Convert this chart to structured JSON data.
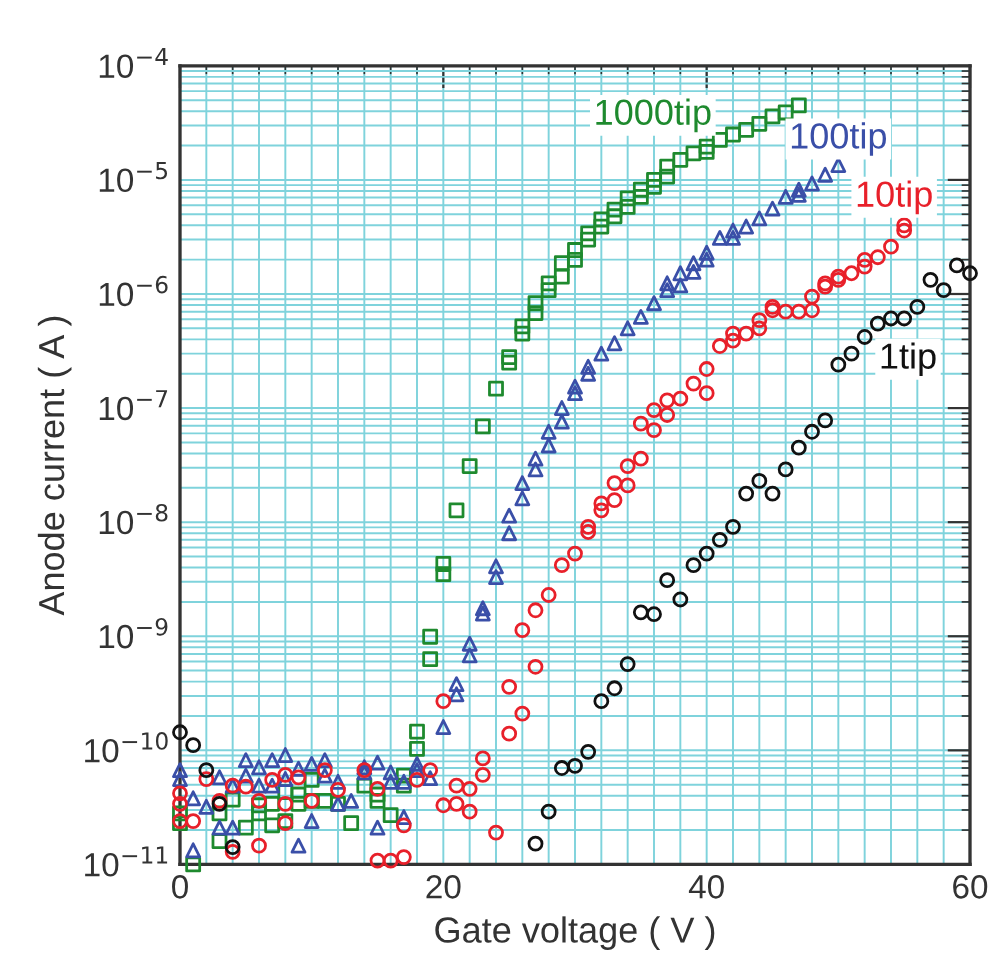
{
  "chart_data": {
    "type": "scatter",
    "xlabel": "Gate voltage ( V )",
    "ylabel": "Anode current ( A )",
    "log": "y",
    "grid": true,
    "xlim": [
      0,
      60
    ],
    "xticks": [
      0,
      20,
      40,
      60
    ],
    "ylim": [
      1e-11,
      0.0001
    ],
    "yticks": [
      {
        "value": 1e-11,
        "label": "10$^{−11}$"
      },
      {
        "value": 1e-10,
        "label": "10$^{−10}$"
      },
      {
        "value": 1e-09,
        "label": "10$^{−9}$"
      },
      {
        "value": 1e-08,
        "label": "10$^{−8}$"
      },
      {
        "value": 1e-07,
        "label": "10$^{−7}$"
      },
      {
        "value": 1e-06,
        "label": "10$^{−6}$"
      },
      {
        "value": 1e-05,
        "label": "10$^{−5}$"
      },
      {
        "value": 0.0001,
        "label": "10$^{−4}$"
      }
    ],
    "series": [
      {
        "name": "1000tip",
        "marker": "square",
        "color": "#1e8a2e",
        "x": [
          0,
          0,
          1,
          3,
          3,
          4,
          5,
          6,
          6,
          7,
          7,
          8,
          8,
          9,
          9,
          10,
          10,
          11,
          12,
          13,
          14,
          15,
          15,
          16,
          17,
          17,
          18,
          18,
          19,
          19,
          20,
          20,
          21,
          22,
          23,
          24,
          25,
          25,
          26,
          26,
          27,
          27,
          28,
          28,
          29,
          29,
          30,
          30,
          31,
          31,
          32,
          32,
          33,
          33,
          34,
          34,
          35,
          35,
          36,
          36,
          37,
          37,
          38,
          39,
          40,
          40,
          41,
          42,
          43,
          44,
          45,
          46,
          47
        ],
        "values": [
          2.8e-11,
          2.3e-11,
          1e-11,
          1.6e-11,
          2.8e-11,
          3.7e-11,
          2.1e-11,
          3.3e-11,
          2.8e-11,
          3.4e-11,
          2.2e-11,
          4.3e-11,
          2.4e-11,
          4.1e-11,
          3.4e-11,
          5.5e-11,
          3.6e-11,
          3.6e-11,
          3.4e-11,
          2.3e-11,
          4.9e-11,
          4.1e-11,
          3.6e-11,
          2.7e-11,
          6e-11,
          4.9e-11,
          1.46e-10,
          1.03e-10,
          9.9e-10,
          6.3e-10,
          4.3e-09,
          3.5e-09,
          1.27e-08,
          3.1e-08,
          6.9e-08,
          1.48e-07,
          2.8e-07,
          2.5e-07,
          5.2e-07,
          4.5e-07,
          8.3e-07,
          6.8e-07,
          1.24e-06,
          1.08e-06,
          1.86e-06,
          1.42e-06,
          2.43e-06,
          1.99e-06,
          3.4e-06,
          3e-06,
          4.5e-06,
          3.9e-06,
          5.5e-06,
          4.8e-06,
          6.9e-06,
          5.8e-06,
          8.2e-06,
          7.1e-06,
          1e-05,
          8.7e-06,
          1.31e-05,
          1.07e-05,
          1.5e-05,
          1.71e-05,
          1.96e-05,
          1.76e-05,
          2.24e-05,
          2.5e-05,
          2.75e-05,
          3.1e-05,
          3.6e-05,
          3.9e-05,
          4.5e-05
        ]
      },
      {
        "name": "100tip",
        "marker": "triangle",
        "color": "#3a4fa8",
        "x": [
          0,
          0,
          1,
          1,
          2,
          3,
          3,
          4,
          4,
          5,
          5,
          6,
          6,
          7,
          7,
          8,
          8,
          9,
          9,
          10,
          10,
          11,
          11,
          12,
          12,
          13,
          14,
          14,
          15,
          15,
          16,
          16,
          17,
          17,
          18,
          18,
          19,
          20,
          21,
          21,
          22,
          22,
          23,
          23,
          24,
          24,
          25,
          25,
          26,
          26,
          27,
          27,
          28,
          28,
          29,
          29,
          30,
          30,
          31,
          31,
          32,
          33,
          34,
          35,
          36,
          37,
          37,
          38,
          38,
          39,
          39,
          40,
          40,
          41,
          42,
          42,
          43,
          44,
          45,
          46,
          47,
          47,
          48,
          49,
          50
        ],
        "values": [
          6.7e-11,
          5.6e-11,
          3.8e-11,
          1.33e-11,
          3.2e-11,
          2.1e-11,
          5.8e-11,
          2.1e-11,
          4.9e-11,
          8.2e-11,
          6e-11,
          7.1e-11,
          4.9e-11,
          8.2e-11,
          4.9e-11,
          9.1e-11,
          5.6e-11,
          6.9e-11,
          1.46e-11,
          7.6e-11,
          2.4e-11,
          8.2e-11,
          6e-11,
          5.3e-11,
          3.4e-11,
          3.6e-11,
          7.1e-11,
          6.4e-11,
          7.8e-11,
          2.1e-11,
          6.4e-11,
          5.3e-11,
          5.3e-11,
          2.6e-11,
          7.6e-11,
          6.7e-11,
          5.7e-11,
          1.6e-10,
          3.8e-10,
          3.1e-10,
          8.6e-10,
          6.8e-10,
          1.76e-09,
          1.58e-09,
          4.1e-09,
          3.3e-09,
          1.14e-08,
          8e-09,
          2.2e-08,
          1.62e-08,
          3.6e-08,
          2.9e-08,
          6.2e-08,
          4.7e-08,
          1e-07,
          7.6e-08,
          1.54e-07,
          1.35e-07,
          2.3e-07,
          2e-07,
          3e-07,
          3.7e-07,
          5e-07,
          6.3e-07,
          8.3e-07,
          1.24e-06,
          1.08e-06,
          1.52e-06,
          1.19e-06,
          1.86e-06,
          1.56e-06,
          2.3e-06,
          2e-06,
          3.1e-06,
          3.6e-06,
          3.1e-06,
          3.9e-06,
          4.6e-06,
          5.6e-06,
          7.1e-06,
          8.2e-06,
          7.4e-06,
          9.3e-06,
          1.11e-05,
          1.35e-05
        ]
      },
      {
        "name": "10tip",
        "marker": "circle",
        "color": "#e8202a",
        "x": [
          0,
          0,
          0,
          1,
          2,
          3,
          4,
          4,
          5,
          6,
          6,
          7,
          8,
          8,
          8,
          9,
          10,
          11,
          12,
          14,
          15,
          15,
          16,
          17,
          17,
          18,
          19,
          20,
          20,
          21,
          21,
          22,
          22,
          23,
          23,
          24,
          25,
          25,
          26,
          26,
          27,
          27,
          28,
          29,
          30,
          31,
          31,
          32,
          32,
          33,
          33,
          34,
          34,
          35,
          35,
          36,
          36,
          37,
          37,
          38,
          39,
          40,
          40,
          41,
          42,
          42,
          43,
          44,
          44,
          45,
          45,
          46,
          47,
          48,
          48,
          49,
          49,
          50,
          50,
          51,
          52,
          52,
          53,
          54,
          55,
          55
        ],
        "values": [
          4.2e-11,
          3.4e-11,
          2.4e-11,
          2.4e-11,
          5.6e-11,
          3.6e-11,
          4.9e-11,
          1.29e-11,
          4.8e-11,
          3.6e-11,
          1.46e-11,
          5.5e-11,
          6.1e-11,
          3.4e-11,
          2.3e-11,
          5.8e-11,
          3.6e-11,
          6.7e-11,
          4.5e-11,
          6.7e-11,
          4.6e-11,
          1.08e-11,
          1.08e-11,
          1.16e-11,
          2.2e-11,
          5.5e-11,
          6.7e-11,
          2.7e-10,
          3.3e-11,
          4.9e-11,
          3.4e-11,
          4.6e-11,
          2.9e-11,
          8.5e-11,
          6.1e-11,
          1.9e-11,
          3.6e-10,
          1.4e-10,
          1.13e-09,
          2.1e-10,
          1.69e-09,
          5.4e-10,
          2.3e-09,
          4.2e-09,
          5.3e-09,
          9.1e-09,
          8.2e-09,
          1.46e-08,
          1.27e-08,
          2.2e-08,
          1.56e-08,
          3.1e-08,
          2.1e-08,
          7.3e-08,
          3.6e-08,
          9.6e-08,
          6.4e-08,
          1.17e-07,
          8.7e-08,
          1.21e-07,
          1.64e-07,
          2.2e-07,
          1.35e-07,
          3.5e-07,
          3.9e-07,
          4.5e-07,
          4.5e-07,
          5.9e-07,
          5e-07,
          7.2e-07,
          7.7e-07,
          7e-07,
          7e-07,
          7.2e-07,
          9.5e-07,
          1.24e-06,
          1.16e-06,
          1.33e-06,
          1.42e-06,
          1.52e-06,
          1.74e-06,
          1.99e-06,
          2.1e-06,
          2.6e-06,
          3.6e-06,
          4e-06
        ]
      },
      {
        "name": "1tip",
        "marker": "circle",
        "color": "#111111",
        "x": [
          0,
          1,
          2,
          3,
          4,
          27,
          28,
          29,
          30,
          31,
          32,
          33,
          34,
          35,
          36,
          37,
          38,
          39,
          40,
          41,
          42,
          43,
          44,
          45,
          46,
          47,
          48,
          49,
          50,
          51,
          52,
          53,
          54,
          55,
          56,
          57,
          58,
          59,
          60
        ],
        "values": [
          1.44e-10,
          1.11e-10,
          6.7e-11,
          3.4e-11,
          1.42e-11,
          1.52e-11,
          2.9e-11,
          7e-11,
          7.3e-11,
          9.7e-11,
          2.7e-10,
          3.5e-10,
          5.7e-10,
          1.62e-09,
          1.56e-09,
          3.1e-09,
          2.1e-09,
          4.2e-09,
          5.3e-09,
          7e-09,
          9.1e-09,
          1.78e-08,
          2.3e-08,
          1.78e-08,
          2.9e-08,
          4.5e-08,
          6.2e-08,
          7.8e-08,
          2.4e-07,
          3e-07,
          4.2e-07,
          5.5e-07,
          6.1e-07,
          6.1e-07,
          7.7e-07,
          1.33e-06,
          1.08e-06,
          1.78e-06,
          1.52e-06
        ]
      }
    ]
  }
}
